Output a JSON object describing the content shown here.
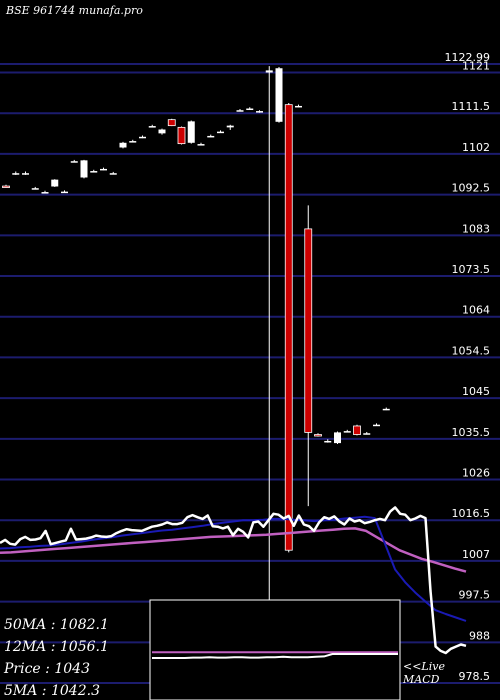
{
  "header": {
    "title": "BSE 961744  munafa.pro"
  },
  "stats": [
    {
      "label": "50MA",
      "value": "1082.1"
    },
    {
      "label": "12MA",
      "value": "1056.1"
    },
    {
      "label": "Price ",
      "value": "1043"
    },
    {
      "label": "5MA",
      "value": "1042.3"
    }
  ],
  "macd_label": {
    "line1": "<<Live",
    "line2": "MACD"
  },
  "colors": {
    "background": "#000000",
    "grid": "#1c1c6e",
    "up_candle": "#ffffff",
    "down_candle": "#cc0000",
    "ma_fast": "#ffffff",
    "ma_mid": "#1a1ab4",
    "ma_slow": "#c060c0",
    "macd_box_border": "#ffffff"
  },
  "chart_data": {
    "type": "candlestick",
    "title": "BSE 961744  munafa.pro",
    "y_ticks": [
      "1122.99",
      "1121",
      "1111.5",
      "1102",
      "1092.5",
      "1083",
      "1073.5",
      "1064",
      "1054.5",
      "1045",
      "1035.5",
      "1026",
      "1016.5",
      "1007",
      "997.5",
      "988",
      "978.5"
    ],
    "ylim": [
      975,
      1127
    ],
    "candles": [
      {
        "open": 1094.5,
        "high": 1094.8,
        "low": 1094.1,
        "close": 1094.4
      },
      {
        "open": 1097.5,
        "high": 1097.9,
        "low": 1097.1,
        "close": 1097.5
      },
      {
        "open": 1097.5,
        "high": 1097.9,
        "low": 1097.1,
        "close": 1097.5
      },
      {
        "open": 1094.0,
        "high": 1094.3,
        "low": 1093.7,
        "close": 1094.0
      },
      {
        "open": 1093.1,
        "high": 1093.4,
        "low": 1092.8,
        "close": 1093.1
      },
      {
        "open": 1094.4,
        "high": 1096.1,
        "low": 1094.3,
        "close": 1096.0
      },
      {
        "open": 1093.2,
        "high": 1093.5,
        "low": 1092.9,
        "close": 1093.2
      },
      {
        "open": 1100.3,
        "high": 1100.6,
        "low": 1100.0,
        "close": 1100.3
      },
      {
        "open": 1096.5,
        "high": 1100.6,
        "low": 1096.3,
        "close": 1100.5
      },
      {
        "open": 1098.0,
        "high": 1098.3,
        "low": 1097.7,
        "close": 1098.0
      },
      {
        "open": 1098.5,
        "high": 1098.8,
        "low": 1098.2,
        "close": 1098.5
      },
      {
        "open": 1097.5,
        "high": 1097.8,
        "low": 1097.2,
        "close": 1097.5
      },
      {
        "open": 1103.5,
        "high": 1104.8,
        "low": 1103.3,
        "close": 1104.6
      },
      {
        "open": 1105.0,
        "high": 1105.3,
        "low": 1104.7,
        "close": 1105.0
      },
      {
        "open": 1106.0,
        "high": 1106.3,
        "low": 1105.7,
        "close": 1106.0
      },
      {
        "open": 1108.5,
        "high": 1108.8,
        "low": 1108.2,
        "close": 1108.5
      },
      {
        "open": 1106.8,
        "high": 1107.9,
        "low": 1106.5,
        "close": 1107.7
      },
      {
        "open": 1110.0,
        "high": 1110.2,
        "low": 1108.5,
        "close": 1108.6
      },
      {
        "open": 1108.2,
        "high": 1108.4,
        "low": 1104.2,
        "close": 1104.4
      },
      {
        "open": 1104.6,
        "high": 1109.8,
        "low": 1104.4,
        "close": 1109.6
      },
      {
        "open": 1104.3,
        "high": 1104.6,
        "low": 1104.0,
        "close": 1104.3
      },
      {
        "open": 1106.2,
        "high": 1106.5,
        "low": 1105.9,
        "close": 1106.2
      },
      {
        "open": 1107.2,
        "high": 1107.5,
        "low": 1106.9,
        "close": 1107.2
      },
      {
        "open": 1108.2,
        "high": 1108.8,
        "low": 1107.6,
        "close": 1108.6
      },
      {
        "open": 1112.2,
        "high": 1112.5,
        "low": 1111.9,
        "close": 1112.2
      },
      {
        "open": 1112.6,
        "high": 1112.9,
        "low": 1112.3,
        "close": 1112.6
      },
      {
        "open": 1111.8,
        "high": 1112.2,
        "low": 1111.6,
        "close": 1112.0
      },
      {
        "open": 1121.0,
        "high": 1122.5,
        "low": 978.5,
        "close": 1121.5
      },
      {
        "open": 1109.5,
        "high": 1122.3,
        "low": 1109.3,
        "close": 1122.0
      },
      {
        "open": 1113.5,
        "high": 1113.9,
        "low": 1009.0,
        "close": 1009.5
      },
      {
        "open": 1113.2,
        "high": 1113.5,
        "low": 1112.9,
        "close": 1113.2
      },
      {
        "open": 1084.5,
        "high": 1090.0,
        "low": 1019.8,
        "close": 1037.0
      },
      {
        "open": 1036.5,
        "high": 1036.8,
        "low": 1036.0,
        "close": 1036.2
      },
      {
        "open": 1035.0,
        "high": 1035.4,
        "low": 1034.6,
        "close": 1035.0
      },
      {
        "open": 1034.5,
        "high": 1037.2,
        "low": 1034.3,
        "close": 1037.0
      },
      {
        "open": 1037.3,
        "high": 1037.6,
        "low": 1037.0,
        "close": 1037.3
      },
      {
        "open": 1038.5,
        "high": 1038.8,
        "low": 1036.3,
        "close": 1036.5
      },
      {
        "open": 1036.8,
        "high": 1037.1,
        "low": 1036.5,
        "close": 1036.8
      },
      {
        "open": 1038.8,
        "high": 1039.1,
        "low": 1038.5,
        "close": 1038.8
      },
      {
        "open": 1042.5,
        "high": 1042.8,
        "low": 1042.2,
        "close": 1042.5
      }
    ],
    "ma_fast": [
      1011.2,
      1011.9,
      1011.0,
      1010.8,
      1012.1,
      1012.6,
      1011.9,
      1012.0,
      1012.3,
      1014.0,
      1010.9,
      1011.2,
      1011.5,
      1011.8,
      1014.5,
      1012.0,
      1012.1,
      1012.2,
      1012.5,
      1012.9,
      1012.7,
      1012.6,
      1012.8,
      1013.5,
      1014.0,
      1014.4,
      1014.2,
      1014.1,
      1014.0,
      1014.5,
      1015.0,
      1015.2,
      1015.5,
      1016.0,
      1015.6,
      1015.6,
      1015.9,
      1017.2,
      1017.7,
      1017.2,
      1016.8,
      1017.6,
      1015.1,
      1015.0,
      1014.6,
      1015.0,
      1013.0,
      1014.5,
      1013.8,
      1012.5,
      1016.0,
      1016.2,
      1015.0,
      1016.5,
      1018.0,
      1017.8,
      1016.9,
      1017.5,
      1015.2,
      1017.6,
      1015.5,
      1015.1,
      1014.0,
      1016.0,
      1017.2,
      1016.8,
      1017.4,
      1016.2,
      1015.5,
      1016.9,
      1016.2,
      1016.5,
      1015.8,
      1016.1,
      1016.5,
      1016.8,
      1016.5,
      1018.5,
      1019.5,
      1018.0,
      1017.8,
      1016.5,
      1016.9,
      1017.5,
      1017.0,
      1000.0,
      987.0,
      986.0,
      985.5,
      986.5,
      987.0,
      987.5,
      987.2
    ],
    "ma_mid": [
      1009.9,
      1010.0,
      1010.2,
      1010.3,
      1010.5,
      1010.6,
      1010.9,
      1011.2,
      1011.5,
      1011.9,
      1012.2,
      1012.5,
      1012.9,
      1013.2,
      1013.5,
      1013.8,
      1014.1,
      1014.3,
      1014.6,
      1014.9,
      1015.2,
      1015.6,
      1015.9,
      1016.2,
      1016.5,
      1016.5,
      1016.6,
      1016.8,
      1016.8,
      1016.6,
      1016.5,
      1016.3,
      1016.5,
      1016.6,
      1016.9,
      1017.1,
      1017.3,
      1017.0,
      1011.0,
      1005.0,
      1002.0,
      999.6,
      997.5,
      995.5,
      994.6,
      993.8,
      993.0
    ],
    "ma_slow": [
      1008.9,
      1009.0,
      1009.2,
      1009.4,
      1009.6,
      1009.8,
      1010.0,
      1010.2,
      1010.4,
      1010.6,
      1010.8,
      1011.0,
      1011.2,
      1011.4,
      1011.6,
      1011.8,
      1012.0,
      1012.2,
      1012.4,
      1012.6,
      1012.7,
      1012.8,
      1012.9,
      1013.0,
      1013.1,
      1013.3,
      1013.5,
      1013.7,
      1013.9,
      1014.1,
      1014.3,
      1014.5,
      1014.6,
      1014.0,
      1012.5,
      1011.0,
      1009.5,
      1008.5,
      1007.5,
      1006.8,
      1006.0,
      1005.2,
      1004.5
    ],
    "macd": {
      "macd_line": [
        0.0,
        0.0,
        0.0,
        0.0,
        0.0,
        0.05,
        0.05,
        0.1,
        0.05,
        0.05,
        0.1,
        0.1,
        0.05,
        0.05,
        0.1,
        0.1,
        0.15,
        0.1,
        0.1,
        0.1,
        0.15,
        0.2,
        0.5,
        0.5,
        0.5,
        0.5,
        0.5,
        0.5,
        0.5,
        0.5,
        0.5
      ],
      "signal_line": [
        0.72,
        0.72,
        0.72,
        0.72,
        0.72,
        0.72,
        0.72,
        0.72,
        0.72,
        0.72,
        0.72,
        0.72,
        0.72,
        0.72,
        0.72,
        0.72,
        0.72,
        0.72,
        0.72,
        0.72,
        0.72,
        0.72,
        0.72,
        0.72,
        0.72,
        0.72,
        0.72,
        0.72,
        0.72,
        0.72,
        0.72
      ]
    }
  }
}
